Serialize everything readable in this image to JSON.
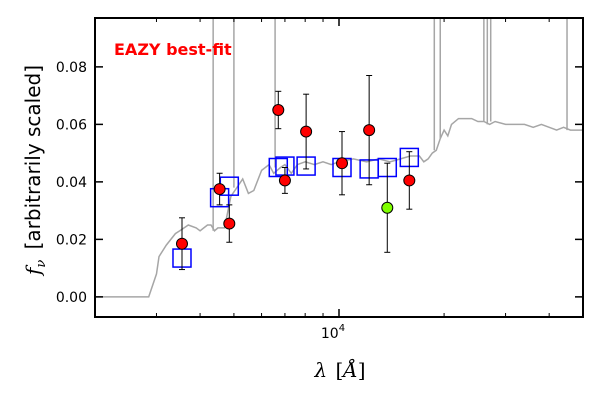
{
  "chart_data": {
    "type": "scatter",
    "title": "",
    "annotation": {
      "text": "EAZY best-fit",
      "color": "#ff0000"
    },
    "xlabel": "λ [Å]",
    "ylabel": "f_ν [arbitrarily scaled]",
    "x_scale": "log",
    "xlim": [
      2000,
      50000
    ],
    "ylim": [
      -0.007,
      0.097
    ],
    "x_ticks": [
      {
        "value": 10000,
        "label": "10^4"
      }
    ],
    "y_ticks": [
      {
        "value": 0.0,
        "label": "0.00"
      },
      {
        "value": 0.02,
        "label": "0.02"
      },
      {
        "value": 0.04,
        "label": "0.04"
      },
      {
        "value": 0.06,
        "label": "0.06"
      },
      {
        "value": 0.08,
        "label": "0.08"
      }
    ],
    "grid": false,
    "legend": null,
    "series": [
      {
        "kind": "model_sed",
        "color": "#a6a6a6",
        "x": [
          2000,
          2850,
          3000,
          3050,
          3200,
          3400,
          3500,
          3600,
          3700,
          3900,
          4000,
          4100,
          4200,
          4300,
          4400,
          4500,
          4600,
          4700,
          4900,
          5100,
          5300,
          5500,
          5700,
          6000,
          6300,
          6500,
          6800,
          7000,
          7300,
          7600,
          8000,
          8500,
          9000,
          9500,
          10000,
          11000,
          12000,
          13000,
          14000,
          15000,
          16000,
          17000,
          17500,
          18000,
          18500,
          19000,
          19500,
          20000,
          20500,
          21000,
          22000,
          23000,
          24000,
          25000,
          26000,
          27000,
          28000,
          30000,
          32000,
          34000,
          36000,
          38000,
          40000,
          42000,
          44000,
          46000,
          48000,
          50000
        ],
        "y": [
          0.0,
          0.0,
          0.008,
          0.014,
          0.018,
          0.022,
          0.023,
          0.024,
          0.025,
          0.024,
          0.023,
          0.024,
          0.025,
          0.025,
          0.023,
          0.024,
          0.024,
          0.024,
          0.035,
          0.038,
          0.041,
          0.036,
          0.037,
          0.044,
          0.046,
          0.043,
          0.045,
          0.046,
          0.043,
          0.046,
          0.047,
          0.046,
          0.047,
          0.046,
          0.047,
          0.048,
          0.047,
          0.048,
          0.047,
          0.048,
          0.049,
          0.049,
          0.047,
          0.048,
          0.05,
          0.051,
          0.055,
          0.058,
          0.056,
          0.06,
          0.062,
          0.062,
          0.062,
          0.061,
          0.061,
          0.06,
          0.061,
          0.06,
          0.06,
          0.06,
          0.059,
          0.06,
          0.059,
          0.058,
          0.059,
          0.058,
          0.058,
          0.058
        ]
      },
      {
        "kind": "model_photometry",
        "color": "#0000ff",
        "x": [
          3550,
          4550,
          4850,
          6700,
          7000,
          8050,
          10200,
          12200,
          13750,
          15900
        ],
        "y": [
          0.0135,
          0.0345,
          0.0385,
          0.045,
          0.0455,
          0.0455,
          0.045,
          0.0445,
          0.045,
          0.0485
        ]
      },
      {
        "kind": "observed",
        "color": "#ff0000",
        "x": [
          3550,
          4550,
          4850,
          6700,
          7000,
          8050,
          10200,
          12200,
          15900
        ],
        "y": [
          0.0185,
          0.0375,
          0.0255,
          0.065,
          0.0405,
          0.0575,
          0.0465,
          0.058,
          0.0405
        ],
        "yerr": [
          0.009,
          0.0055,
          0.0065,
          0.0065,
          0.0045,
          0.013,
          0.011,
          0.019,
          0.01
        ]
      },
      {
        "kind": "observed_outlier",
        "color": "#7fff00",
        "x": [
          13750
        ],
        "y": [
          0.031
        ],
        "yerr": [
          0.0155
        ]
      }
    ]
  }
}
